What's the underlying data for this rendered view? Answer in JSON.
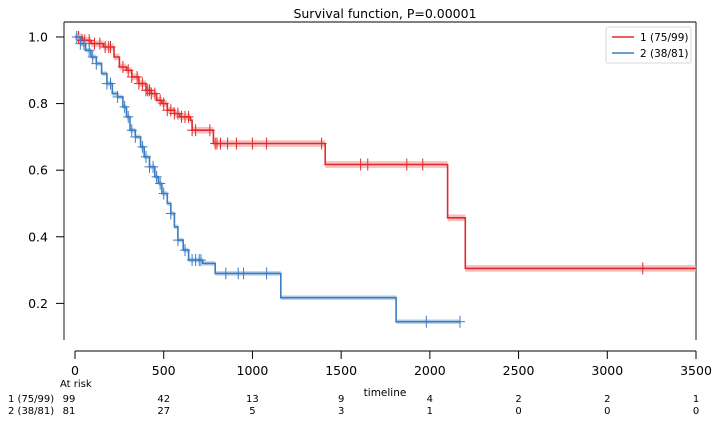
{
  "chart_data": {
    "type": "line",
    "title": "Survival function, P=0.00001",
    "xlabel": "timeline",
    "ylabel": "",
    "xlim": [
      0,
      3500
    ],
    "ylim": [
      0.09,
      1.045
    ],
    "x_ticks": [
      0,
      500,
      1000,
      1500,
      2000,
      2500,
      3000,
      3500
    ],
    "y_ticks": [
      0.2,
      0.4,
      0.6,
      0.8,
      1.0
    ],
    "grid": false,
    "legend_position": "top-right",
    "series": [
      {
        "name": "1 (75/99)",
        "color": "#e3292b",
        "fill": "#f4a9aa",
        "steps": [
          [
            0,
            1.0
          ],
          [
            40,
            0.99
          ],
          [
            90,
            0.98
          ],
          [
            160,
            0.97
          ],
          [
            220,
            0.94
          ],
          [
            250,
            0.91
          ],
          [
            290,
            0.9
          ],
          [
            320,
            0.88
          ],
          [
            360,
            0.86
          ],
          [
            400,
            0.84
          ],
          [
            430,
            0.83
          ],
          [
            460,
            0.81
          ],
          [
            490,
            0.8
          ],
          [
            520,
            0.78
          ],
          [
            560,
            0.77
          ],
          [
            590,
            0.76
          ],
          [
            650,
            0.75
          ],
          [
            660,
            0.72
          ],
          [
            780,
            0.68
          ],
          [
            1410,
            0.617
          ],
          [
            2100,
            0.457
          ],
          [
            2200,
            0.305
          ]
        ],
        "end": 3500,
        "ci_halfwidth": 0.01,
        "censored": [
          20,
          40,
          55,
          80,
          110,
          140,
          170,
          190,
          200,
          270,
          300,
          320,
          350,
          360,
          380,
          400,
          410,
          420,
          430,
          450,
          480,
          500,
          520,
          540,
          560,
          580,
          600,
          620,
          640,
          660,
          680,
          760,
          790,
          800,
          820,
          860,
          910,
          1000,
          1080,
          1390,
          1610,
          1650,
          1870,
          1960,
          3200
        ]
      },
      {
        "name": "2 (38/81)",
        "color": "#3a7cc1",
        "fill": "#a9c6e8",
        "steps": [
          [
            0,
            1.0
          ],
          [
            30,
            0.98
          ],
          [
            60,
            0.96
          ],
          [
            90,
            0.94
          ],
          [
            120,
            0.92
          ],
          [
            150,
            0.89
          ],
          [
            180,
            0.86
          ],
          [
            210,
            0.83
          ],
          [
            240,
            0.82
          ],
          [
            270,
            0.79
          ],
          [
            290,
            0.76
          ],
          [
            310,
            0.72
          ],
          [
            340,
            0.7
          ],
          [
            370,
            0.67
          ],
          [
            390,
            0.64
          ],
          [
            420,
            0.61
          ],
          [
            450,
            0.58
          ],
          [
            470,
            0.56
          ],
          [
            490,
            0.53
          ],
          [
            520,
            0.5
          ],
          [
            540,
            0.47
          ],
          [
            560,
            0.43
          ],
          [
            580,
            0.39
          ],
          [
            610,
            0.36
          ],
          [
            640,
            0.33
          ],
          [
            720,
            0.32
          ],
          [
            790,
            0.29
          ],
          [
            1160,
            0.217
          ],
          [
            1810,
            0.145
          ]
        ],
        "end": 2170,
        "ci_halfwidth": 0.007,
        "censored": [
          10,
          30,
          50,
          80,
          100,
          120,
          180,
          200,
          240,
          280,
          300,
          320,
          340,
          380,
          400,
          420,
          440,
          460,
          480,
          500,
          540,
          580,
          620,
          660,
          680,
          700,
          710,
          850,
          920,
          950,
          1080,
          1980,
          2170
        ]
      }
    ],
    "at_risk": {
      "label": "At risk",
      "rows": [
        {
          "label": "1 (75/99)",
          "counts": [
            "99",
            "42",
            "13",
            "9",
            "4",
            "2",
            "2",
            "1"
          ]
        },
        {
          "label": "2 (38/81)",
          "counts": [
            "81",
            "27",
            "5",
            "3",
            "1",
            "0",
            "0",
            "0"
          ]
        }
      ]
    }
  }
}
